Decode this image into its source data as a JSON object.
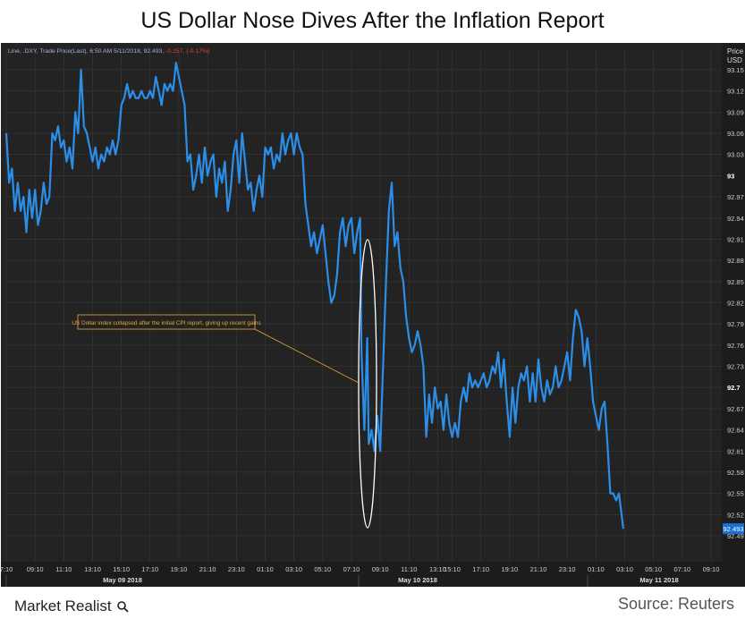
{
  "title": "US Dollar Nose Dives After the Inflation Report",
  "legend_text": "Line, .DXY, Trade Price(Last), 6:50 AM 5/11/2018, 92.493,",
  "legend_change": "-0.157, (-0.17%)",
  "annotation": "US Dollar index collapsed after the initial CPI report, giving up recent gains",
  "brand": "Market Realist",
  "source": "Source: Reuters",
  "colors": {
    "background": "#232323",
    "line": "#2b8ee8",
    "grid": "#3a3a3a",
    "annotation": "#e8a53a",
    "change": "#e04040"
  },
  "chart_data": {
    "type": "line",
    "title": "US Dollar Nose Dives After the Inflation Report",
    "ylabel": "Price USD",
    "ylim": [
      92.48,
      93.17
    ],
    "y_ticks": [
      "93.15",
      "93.12",
      "93.09",
      "93.06",
      "93.03",
      "93",
      "92.97",
      "92.94",
      "92.91",
      "92.88",
      "92.85",
      "92.82",
      "92.79",
      "92.76",
      "92.73",
      "92.7",
      "92.67",
      "92.64",
      "92.61",
      "92.58",
      "92.55",
      "92.52",
      "92.49"
    ],
    "x_ticks": [
      "7:10",
      "09:10",
      "11:10",
      "13:10",
      "15:10",
      "17:10",
      "19:10",
      "21:10",
      "23:10",
      "01:10",
      "03:10",
      "05:10",
      "07:10",
      "09:10",
      "11:10",
      "13:10",
      "15:10",
      "17:10",
      "19:10",
      "21:10",
      "23:10",
      "01:10",
      "03:10",
      "05:10",
      "07:10",
      "09:10"
    ],
    "x_tick_index": [
      0,
      1,
      2,
      3,
      4,
      5,
      6,
      7,
      8,
      9,
      10,
      11,
      12,
      13,
      14,
      15,
      15.5,
      16.5,
      17.5,
      18.5,
      19.5,
      20.5,
      21.5,
      22.5,
      23.5,
      24.5
    ],
    "date_labels": [
      "May 09 2018",
      "May 10 2018",
      "May 11 2018"
    ],
    "last_value": "92.493",
    "series": [
      {
        "values": [
          [
            0.0,
            93.06
          ],
          [
            0.1,
            92.99
          ],
          [
            0.2,
            93.01
          ],
          [
            0.3,
            92.95
          ],
          [
            0.4,
            92.99
          ],
          [
            0.5,
            92.95
          ],
          [
            0.6,
            92.97
          ],
          [
            0.7,
            92.92
          ],
          [
            0.8,
            92.98
          ],
          [
            0.9,
            92.94
          ],
          [
            1.0,
            92.98
          ],
          [
            1.1,
            92.93
          ],
          [
            1.2,
            92.95
          ],
          [
            1.3,
            92.99
          ],
          [
            1.4,
            92.96
          ],
          [
            1.5,
            92.97
          ],
          [
            1.6,
            93.06
          ],
          [
            1.7,
            93.05
          ],
          [
            1.8,
            93.07
          ],
          [
            1.9,
            93.04
          ],
          [
            2.0,
            93.05
          ],
          [
            2.1,
            93.02
          ],
          [
            2.2,
            93.04
          ],
          [
            2.3,
            93.01
          ],
          [
            2.4,
            93.09
          ],
          [
            2.5,
            93.06
          ],
          [
            2.6,
            93.15
          ],
          [
            2.7,
            93.07
          ],
          [
            2.8,
            93.06
          ],
          [
            2.9,
            93.04
          ],
          [
            3.0,
            93.02
          ],
          [
            3.1,
            93.04
          ],
          [
            3.2,
            93.01
          ],
          [
            3.3,
            93.03
          ],
          [
            3.4,
            93.02
          ],
          [
            3.5,
            93.04
          ],
          [
            3.6,
            93.03
          ],
          [
            3.7,
            93.05
          ],
          [
            3.8,
            93.03
          ],
          [
            3.9,
            93.05
          ],
          [
            4.0,
            93.1
          ],
          [
            4.1,
            93.11
          ],
          [
            4.2,
            93.13
          ],
          [
            4.3,
            93.11
          ],
          [
            4.4,
            93.12
          ],
          [
            4.5,
            93.11
          ],
          [
            4.6,
            93.11
          ],
          [
            4.7,
            93.12
          ],
          [
            4.8,
            93.11
          ],
          [
            4.9,
            93.11
          ],
          [
            5.0,
            93.12
          ],
          [
            5.1,
            93.11
          ],
          [
            5.2,
            93.14
          ],
          [
            5.3,
            93.12
          ],
          [
            5.4,
            93.1
          ],
          [
            5.5,
            93.13
          ],
          [
            5.6,
            93.12
          ],
          [
            5.7,
            93.13
          ],
          [
            5.8,
            93.12
          ],
          [
            5.9,
            93.16
          ],
          [
            6.0,
            93.14
          ],
          [
            6.1,
            93.12
          ],
          [
            6.2,
            93.1
          ],
          [
            6.3,
            93.02
          ],
          [
            6.4,
            93.03
          ],
          [
            6.5,
            92.98
          ],
          [
            6.6,
            93.0
          ],
          [
            6.7,
            93.03
          ],
          [
            6.8,
            92.99
          ],
          [
            6.9,
            93.04
          ],
          [
            7.0,
            93.0
          ],
          [
            7.1,
            93.02
          ],
          [
            7.2,
            93.03
          ],
          [
            7.3,
            92.97
          ],
          [
            7.4,
            93.01
          ],
          [
            7.5,
            92.99
          ],
          [
            7.6,
            93.02
          ],
          [
            7.7,
            92.95
          ],
          [
            7.8,
            92.98
          ],
          [
            7.9,
            93.03
          ],
          [
            8.0,
            93.05
          ],
          [
            8.1,
            92.99
          ],
          [
            8.2,
            93.06
          ],
          [
            8.3,
            93.02
          ],
          [
            8.4,
            92.98
          ],
          [
            8.5,
            92.99
          ],
          [
            8.6,
            92.95
          ],
          [
            8.7,
            92.98
          ],
          [
            8.8,
            93.0
          ],
          [
            8.9,
            92.97
          ],
          [
            9.0,
            93.04
          ],
          [
            9.1,
            93.03
          ],
          [
            9.2,
            93.04
          ],
          [
            9.3,
            93.01
          ],
          [
            9.4,
            93.03
          ],
          [
            9.5,
            93.02
          ],
          [
            9.6,
            93.06
          ],
          [
            9.7,
            93.03
          ],
          [
            9.8,
            93.05
          ],
          [
            9.9,
            93.06
          ],
          [
            10.0,
            93.03
          ],
          [
            10.1,
            93.06
          ],
          [
            10.2,
            93.04
          ],
          [
            10.3,
            93.03
          ],
          [
            10.4,
            92.96
          ],
          [
            10.5,
            92.93
          ],
          [
            10.6,
            92.9
          ],
          [
            10.7,
            92.92
          ],
          [
            10.8,
            92.89
          ],
          [
            10.9,
            92.91
          ],
          [
            11.0,
            92.93
          ],
          [
            11.1,
            92.89
          ],
          [
            11.2,
            92.85
          ],
          [
            11.3,
            92.82
          ],
          [
            11.4,
            92.83
          ],
          [
            11.5,
            92.86
          ],
          [
            11.6,
            92.92
          ],
          [
            11.7,
            92.94
          ],
          [
            11.8,
            92.9
          ],
          [
            11.9,
            92.93
          ],
          [
            12.0,
            92.94
          ],
          [
            12.1,
            92.89
          ],
          [
            12.2,
            92.92
          ],
          [
            12.3,
            92.94
          ],
          [
            12.35,
            92.75
          ],
          [
            12.45,
            92.64
          ],
          [
            12.55,
            92.77
          ],
          [
            12.6,
            92.62
          ],
          [
            12.7,
            92.64
          ],
          [
            12.8,
            92.61
          ],
          [
            12.9,
            92.66
          ],
          [
            13.0,
            92.61
          ],
          [
            13.05,
            92.67
          ],
          [
            13.1,
            92.73
          ],
          [
            13.2,
            92.85
          ],
          [
            13.3,
            92.95
          ],
          [
            13.4,
            92.99
          ],
          [
            13.5,
            92.9
          ],
          [
            13.6,
            92.92
          ],
          [
            13.7,
            92.87
          ],
          [
            13.8,
            92.85
          ],
          [
            13.9,
            92.8
          ],
          [
            14.0,
            92.77
          ],
          [
            14.1,
            92.75
          ],
          [
            14.2,
            92.76
          ],
          [
            14.3,
            92.78
          ],
          [
            14.4,
            92.76
          ],
          [
            14.5,
            92.73
          ],
          [
            14.6,
            92.63
          ],
          [
            14.7,
            92.69
          ],
          [
            14.8,
            92.65
          ],
          [
            14.9,
            92.7
          ],
          [
            15.0,
            92.67
          ],
          [
            15.1,
            92.68
          ],
          [
            15.2,
            92.64
          ],
          [
            15.3,
            92.69
          ],
          [
            15.4,
            92.65
          ],
          [
            15.5,
            92.63
          ],
          [
            15.6,
            92.65
          ],
          [
            15.7,
            92.63
          ],
          [
            15.8,
            92.68
          ],
          [
            15.9,
            92.7
          ],
          [
            16.0,
            92.68
          ],
          [
            16.1,
            92.72
          ],
          [
            16.2,
            92.7
          ],
          [
            16.3,
            92.71
          ],
          [
            16.4,
            92.7
          ],
          [
            16.5,
            92.71
          ],
          [
            16.6,
            92.72
          ],
          [
            16.7,
            92.7
          ],
          [
            16.8,
            92.71
          ],
          [
            16.9,
            92.73
          ],
          [
            17.0,
            92.72
          ],
          [
            17.1,
            92.75
          ],
          [
            17.2,
            92.7
          ],
          [
            17.3,
            92.74
          ],
          [
            17.4,
            92.68
          ],
          [
            17.5,
            92.63
          ],
          [
            17.6,
            92.7
          ],
          [
            17.7,
            92.65
          ],
          [
            17.8,
            92.7
          ],
          [
            17.9,
            92.72
          ],
          [
            18.0,
            92.71
          ],
          [
            18.1,
            92.73
          ],
          [
            18.2,
            92.68
          ],
          [
            18.3,
            92.72
          ],
          [
            18.4,
            92.68
          ],
          [
            18.5,
            92.74
          ],
          [
            18.6,
            92.7
          ],
          [
            18.7,
            92.68
          ],
          [
            18.8,
            92.71
          ],
          [
            18.9,
            92.69
          ],
          [
            19.0,
            92.7
          ],
          [
            19.1,
            92.73
          ],
          [
            19.2,
            92.7
          ],
          [
            19.3,
            92.71
          ],
          [
            19.4,
            92.73
          ],
          [
            19.5,
            92.75
          ],
          [
            19.6,
            92.71
          ],
          [
            19.7,
            92.77
          ],
          [
            19.8,
            92.81
          ],
          [
            19.9,
            92.8
          ],
          [
            20.0,
            92.78
          ],
          [
            20.1,
            92.73
          ],
          [
            20.2,
            92.77
          ],
          [
            20.3,
            92.73
          ],
          [
            20.4,
            92.68
          ],
          [
            20.5,
            92.66
          ],
          [
            20.6,
            92.64
          ],
          [
            20.7,
            92.67
          ],
          [
            20.8,
            92.68
          ],
          [
            20.9,
            92.62
          ],
          [
            21.0,
            92.55
          ],
          [
            21.1,
            92.55
          ],
          [
            21.2,
            92.54
          ],
          [
            21.3,
            92.55
          ],
          [
            21.45,
            92.5
          ]
        ]
      }
    ]
  }
}
